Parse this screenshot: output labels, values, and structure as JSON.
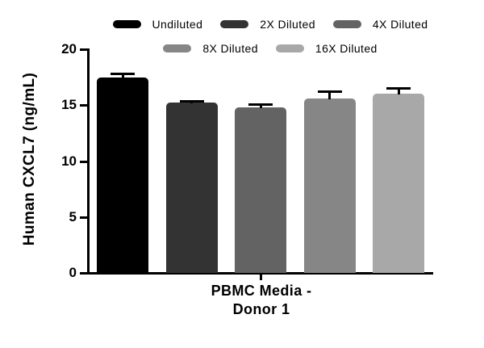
{
  "figure": {
    "background": "#ffffff",
    "text_color": "#000000",
    "axis_color": "#000000"
  },
  "chart_data": {
    "type": "bar",
    "title": "",
    "ylabel": "Human CXCL7 (ng/mL)",
    "xlabel": "PBMC Media - Donor 1",
    "xlabel_line1": "PBMC Media -",
    "xlabel_line2": "Donor 1",
    "ylim": [
      0,
      20
    ],
    "yticks": [
      0,
      5,
      10,
      15,
      20
    ],
    "grid": false,
    "legend_position": "top",
    "error_bars": "upper_only",
    "categories": [
      "PBMC Media - Donor 1"
    ],
    "legend_rows": [
      [
        0,
        1,
        2
      ],
      [
        3,
        4
      ]
    ],
    "series": [
      {
        "name": "Undiluted",
        "value": 17.5,
        "error": 0.3,
        "color": "#000000"
      },
      {
        "name": "2X Diluted",
        "value": 15.2,
        "error": 0.2,
        "color": "#333333"
      },
      {
        "name": "4X Diluted",
        "value": 14.8,
        "error": 0.3,
        "color": "#636363"
      },
      {
        "name": "8X Diluted",
        "value": 15.6,
        "error": 0.65,
        "color": "#868686"
      },
      {
        "name": "16X Diluted",
        "value": 16.0,
        "error": 0.55,
        "color": "#a8a8a8"
      }
    ]
  }
}
